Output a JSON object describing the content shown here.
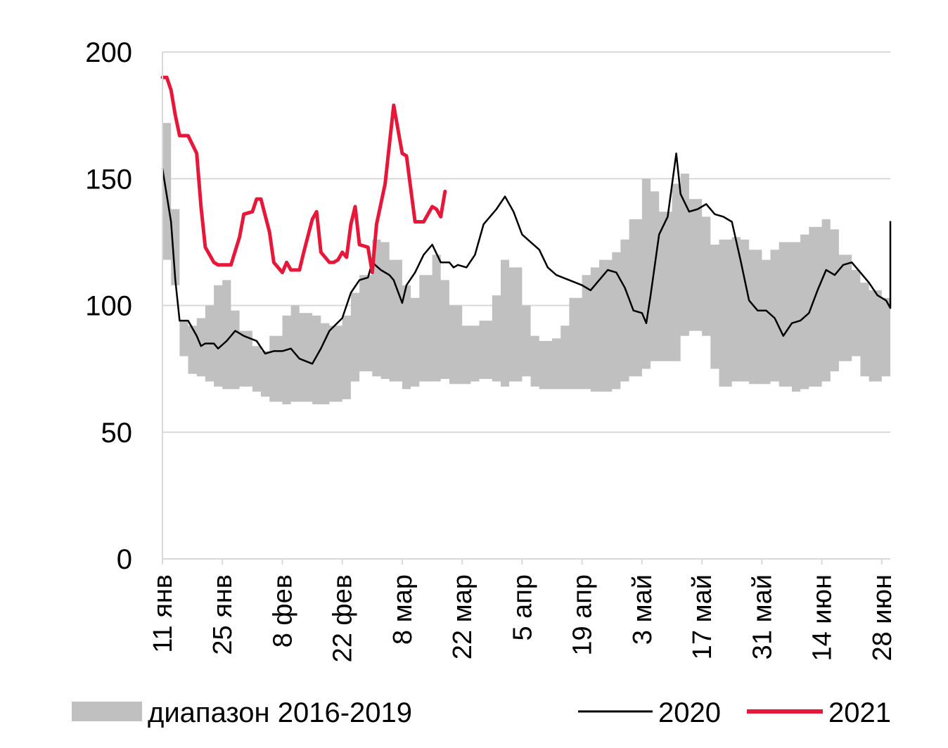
{
  "chart_data": {
    "type": "line",
    "y_ticks": [
      "0",
      "50",
      "100",
      "150",
      "200"
    ],
    "ylim": [
      0,
      200
    ],
    "grid": "horizontal",
    "x_ticks": [
      "11 янв",
      "25 янв",
      "8 фев",
      "22 фев",
      "8 мар",
      "22 мар",
      "5 апр",
      "19 апр",
      "3 май",
      "17 май",
      "31 май",
      "14 июн",
      "28 июн"
    ],
    "x_tick_dates": [
      "2021-01-11",
      "2021-01-25",
      "2021-02-08",
      "2021-02-22",
      "2021-03-08",
      "2021-03-22",
      "2021-04-05",
      "2021-04-19",
      "2021-05-03",
      "2021-05-17",
      "2021-05-31",
      "2021-06-14",
      "2021-06-28"
    ],
    "xlim": [
      "2021-01-11",
      "2021-06-30"
    ],
    "legend_position": "bottom",
    "range_band": {
      "name": "диапазон 2016-2019",
      "color": "#c0c0c0",
      "x": [
        "2021-01-11",
        "2021-01-13",
        "2021-01-15",
        "2021-01-17",
        "2021-01-19",
        "2021-01-21",
        "2021-01-23",
        "2021-01-25",
        "2021-01-27",
        "2021-01-29",
        "2021-02-01",
        "2021-02-03",
        "2021-02-05",
        "2021-02-08",
        "2021-02-10",
        "2021-02-12",
        "2021-02-15",
        "2021-02-17",
        "2021-02-19",
        "2021-02-22",
        "2021-02-24",
        "2021-02-26",
        "2021-03-01",
        "2021-03-03",
        "2021-03-05",
        "2021-03-08",
        "2021-03-10",
        "2021-03-12",
        "2021-03-15",
        "2021-03-17",
        "2021-03-19",
        "2021-03-22",
        "2021-03-24",
        "2021-03-26",
        "2021-03-29",
        "2021-03-31",
        "2021-04-02",
        "2021-04-05",
        "2021-04-07",
        "2021-04-09",
        "2021-04-12",
        "2021-04-14",
        "2021-04-16",
        "2021-04-19",
        "2021-04-21",
        "2021-04-23",
        "2021-04-26",
        "2021-04-28",
        "2021-04-30",
        "2021-05-03",
        "2021-05-05",
        "2021-05-07",
        "2021-05-10",
        "2021-05-12",
        "2021-05-14",
        "2021-05-17",
        "2021-05-19",
        "2021-05-21",
        "2021-05-24",
        "2021-05-26",
        "2021-05-28",
        "2021-05-31",
        "2021-06-02",
        "2021-06-04",
        "2021-06-07",
        "2021-06-09",
        "2021-06-11",
        "2021-06-14",
        "2021-06-16",
        "2021-06-18",
        "2021-06-21",
        "2021-06-23",
        "2021-06-25",
        "2021-06-28",
        "2021-06-30"
      ],
      "low": [
        118,
        108,
        80,
        73,
        72,
        70,
        68,
        67,
        67,
        68,
        66,
        64,
        62,
        61,
        62,
        62,
        61,
        61,
        62,
        63,
        70,
        74,
        72,
        71,
        70,
        67,
        68,
        70,
        70,
        71,
        69,
        69,
        70,
        71,
        70,
        68,
        70,
        72,
        68,
        67,
        67,
        67,
        67,
        67,
        66,
        66,
        67,
        70,
        72,
        75,
        78,
        78,
        78,
        88,
        90,
        88,
        75,
        68,
        70,
        70,
        69,
        69,
        70,
        68,
        66,
        67,
        68,
        70,
        74,
        78,
        80,
        72,
        70,
        72,
        77
      ],
      "high": [
        172,
        138,
        94,
        92,
        95,
        100,
        108,
        110,
        98,
        90,
        84,
        82,
        88,
        96,
        100,
        97,
        96,
        93,
        92,
        96,
        105,
        112,
        126,
        125,
        118,
        108,
        103,
        112,
        120,
        110,
        100,
        92,
        92,
        94,
        104,
        118,
        115,
        100,
        88,
        86,
        87,
        92,
        103,
        112,
        115,
        118,
        121,
        126,
        134,
        150,
        145,
        137,
        148,
        152,
        142,
        135,
        124,
        126,
        127,
        126,
        122,
        118,
        122,
        125,
        125,
        128,
        131,
        134,
        130,
        120,
        114,
        109,
        106,
        103,
        100
      ]
    },
    "series": [
      {
        "name": "2020",
        "color": "#000000",
        "x": [
          "2021-01-11",
          "2021-01-13",
          "2021-01-14",
          "2021-01-15",
          "2021-01-17",
          "2021-01-19",
          "2021-01-20",
          "2021-01-21",
          "2021-01-23",
          "2021-01-24",
          "2021-01-26",
          "2021-01-28",
          "2021-01-30",
          "2021-02-02",
          "2021-02-04",
          "2021-02-06",
          "2021-02-08",
          "2021-02-10",
          "2021-02-12",
          "2021-02-15",
          "2021-02-17",
          "2021-02-19",
          "2021-02-22",
          "2021-02-24",
          "2021-02-26",
          "2021-02-28",
          "2021-03-01",
          "2021-03-03",
          "2021-03-05",
          "2021-03-06",
          "2021-03-08",
          "2021-03-09",
          "2021-03-11",
          "2021-03-13",
          "2021-03-15",
          "2021-03-17",
          "2021-03-19",
          "2021-03-20",
          "2021-03-21",
          "2021-03-23",
          "2021-03-25",
          "2021-03-27",
          "2021-03-29",
          "2021-03-30",
          "2021-04-01",
          "2021-04-03",
          "2021-04-05",
          "2021-04-07",
          "2021-04-09",
          "2021-04-11",
          "2021-04-13",
          "2021-04-16",
          "2021-04-19",
          "2021-04-21",
          "2021-04-23",
          "2021-04-25",
          "2021-04-27",
          "2021-04-29",
          "2021-05-01",
          "2021-05-03",
          "2021-05-04",
          "2021-05-05",
          "2021-05-07",
          "2021-05-09",
          "2021-05-11",
          "2021-05-12",
          "2021-05-14",
          "2021-05-16",
          "2021-05-18",
          "2021-05-20",
          "2021-05-22",
          "2021-05-24",
          "2021-05-26",
          "2021-05-28",
          "2021-05-30",
          "2021-06-01",
          "2021-06-03",
          "2021-06-05",
          "2021-06-07",
          "2021-06-09",
          "2021-06-11",
          "2021-06-13",
          "2021-06-15",
          "2021-06-17",
          "2021-06-19",
          "2021-06-21",
          "2021-06-23",
          "2021-06-25",
          "2021-06-27",
          "2021-06-29",
          "2021-06-30"
        ],
        "values": [
          154,
          133,
          110,
          94,
          94,
          88,
          84,
          85,
          85,
          83,
          86,
          90,
          88,
          86,
          81,
          82,
          82,
          83,
          79,
          77,
          83,
          90,
          95,
          105,
          110,
          111,
          117,
          114,
          112,
          110,
          101,
          108,
          113,
          120,
          124,
          117,
          117,
          115,
          116,
          115,
          120,
          132,
          136,
          138,
          143,
          137,
          128,
          125,
          122,
          115,
          112,
          110,
          108,
          106,
          110,
          114,
          113,
          107,
          98,
          97,
          93,
          104,
          128,
          135,
          160,
          144,
          137,
          138,
          140,
          136,
          135,
          133,
          118,
          102,
          98,
          98,
          95,
          88,
          93,
          94,
          97,
          106,
          114,
          112,
          116,
          117,
          113,
          109,
          104,
          102,
          99
        ],
        "note_last_values": [
          114,
          133
        ]
      },
      {
        "name": "2021",
        "color": "#e8173a",
        "x": [
          "2021-01-11",
          "2021-01-12",
          "2021-01-13",
          "2021-01-14",
          "2021-01-15",
          "2021-01-17",
          "2021-01-19",
          "2021-01-20",
          "2021-01-21",
          "2021-01-23",
          "2021-01-24",
          "2021-01-26",
          "2021-01-27",
          "2021-01-29",
          "2021-01-30",
          "2021-02-01",
          "2021-02-02",
          "2021-02-03",
          "2021-02-05",
          "2021-02-06",
          "2021-02-08",
          "2021-02-09",
          "2021-02-10",
          "2021-02-12",
          "2021-02-13",
          "2021-02-15",
          "2021-02-16",
          "2021-02-17",
          "2021-02-19",
          "2021-02-20",
          "2021-02-21",
          "2021-02-22",
          "2021-02-23",
          "2021-02-24",
          "2021-02-25",
          "2021-02-26",
          "2021-02-28",
          "2021-03-01",
          "2021-03-02",
          "2021-03-04",
          "2021-03-06",
          "2021-03-08",
          "2021-03-09",
          "2021-03-10",
          "2021-03-11",
          "2021-03-13",
          "2021-03-15",
          "2021-03-16",
          "2021-03-17",
          "2021-03-18"
        ],
        "values": [
          190,
          190,
          185,
          175,
          167,
          167,
          160,
          139,
          123,
          117,
          116,
          116,
          116,
          127,
          136,
          137,
          142,
          142,
          129,
          117,
          113,
          117,
          114,
          114,
          121,
          134,
          137,
          121,
          117,
          117,
          118,
          121,
          119,
          132,
          139,
          124,
          123,
          113,
          132,
          148,
          179,
          160,
          159,
          146,
          133,
          133,
          139,
          138,
          135,
          145
        ]
      }
    ]
  }
}
